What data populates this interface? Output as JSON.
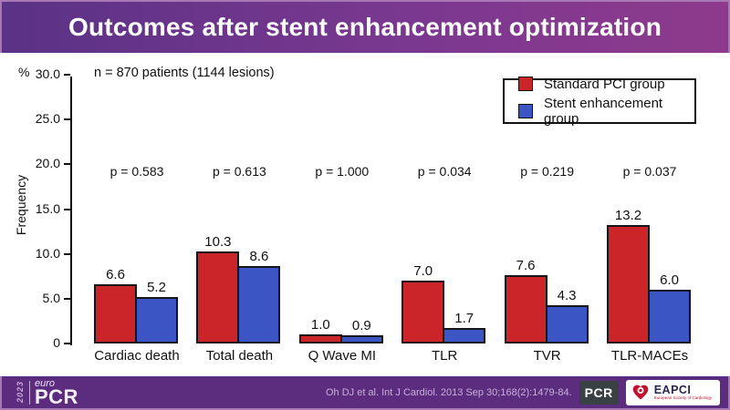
{
  "slide": {
    "title": "Outcomes after stent enhancement optimization"
  },
  "chart_data": {
    "type": "bar",
    "title": "Outcomes after stent enhancement optimization",
    "annotation": "n = 870 patients (1144 lesions)",
    "ylabel": "Frequency",
    "y_unit": "%",
    "ylim": [
      0,
      30
    ],
    "ytick_labels": [
      "30.0",
      "25.0",
      "20.0",
      "15.0",
      "10.0",
      "5.0",
      "0"
    ],
    "grid": false,
    "legend_position": "top-right",
    "categories": [
      "Cardiac death",
      "Total death",
      "Q Wave MI",
      "TLR",
      "TVR",
      "TLR-MACEs"
    ],
    "series": [
      {
        "name": "Standard PCI group",
        "color": "#CC2529",
        "values": [
          6.6,
          10.3,
          1.0,
          7.0,
          7.6,
          13.2
        ]
      },
      {
        "name": "Stent enhancement group",
        "color": "#3B55C5",
        "values": [
          5.2,
          8.6,
          0.9,
          1.7,
          4.3,
          6.0
        ]
      }
    ],
    "p_values": [
      "p = 0.583",
      "p = 0.613",
      "p = 1.000",
      "p = 0.034",
      "p = 0.219",
      "p = 0.037"
    ]
  },
  "footer": {
    "citation": "Oh DJ et al. Int J Cardiol. 2013 Sep 30;168(2):1479-84.",
    "europcr": {
      "year": "2023",
      "euro": "euro",
      "pcr": "PCR"
    },
    "pcr_badge": "PCR",
    "eapci": {
      "name": "EAPCI",
      "tagline": "European Society of Cardiology"
    }
  },
  "colors": {
    "header_gradient_left": "#5A3286",
    "header_gradient_right": "#8E3A8C",
    "footer_purple": "#5C2D7F",
    "frame_border": "#A878B5",
    "bar_red": "#CC2529",
    "bar_blue": "#3B55C5",
    "bar_outline": "#16161a"
  }
}
